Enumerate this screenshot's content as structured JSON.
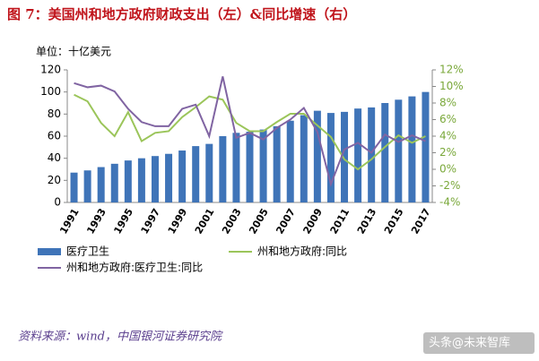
{
  "chart_data": {
    "type": "bar-line",
    "title": "图 7：美国州和地方政府财政支出（左）&同比增速（右）",
    "unit_label": "单位：十亿美元",
    "categories": [
      "1991",
      null,
      "1993",
      null,
      "1995",
      null,
      "1997",
      null,
      "1999",
      null,
      "2001",
      null,
      "2003",
      null,
      "2005",
      null,
      "2007",
      null,
      "2009",
      null,
      "2011",
      null,
      "2013",
      null,
      "2015",
      null,
      "2017"
    ],
    "series": [
      {
        "name": "医疗卫生",
        "type": "bar",
        "color": "#3f74b8",
        "values": [
          27,
          29,
          32,
          35,
          38,
          40,
          42,
          44,
          47,
          51,
          53,
          60,
          63,
          64,
          66,
          69,
          74,
          79,
          83,
          81,
          82,
          85,
          86,
          90,
          93,
          96,
          100
        ]
      },
      {
        "name": "州和地方政府:同比",
        "type": "line",
        "axis": "y2",
        "color": "#9bc55a",
        "values": [
          9.0,
          8.2,
          5.6,
          4.0,
          6.9,
          3.4,
          4.4,
          4.6,
          6.3,
          7.5,
          8.8,
          8.4,
          5.6,
          4.6,
          4.6,
          5.7,
          6.7,
          6.7,
          5.3,
          3.9,
          1.2,
          0.0,
          1.2,
          2.7,
          4.1,
          3.2,
          4.0
        ]
      },
      {
        "name": "州和地方政府:医疗卫生:同比",
        "type": "line",
        "axis": "y2",
        "color": "#8064a2",
        "values": [
          10.4,
          9.9,
          10.1,
          9.4,
          7.3,
          5.7,
          5.2,
          5.2,
          7.3,
          7.8,
          4.0,
          11.2,
          3.8,
          4.4,
          3.6,
          5.0,
          6.0,
          7.4,
          4.5,
          -1.8,
          2.4,
          3.2,
          2.0,
          4.2,
          3.3,
          4.1,
          3.4
        ]
      }
    ],
    "ylim": [
      0,
      120
    ],
    "yticks": [
      0,
      20,
      40,
      60,
      80,
      100,
      120
    ],
    "y2lim": [
      -4,
      12
    ],
    "y2ticks": [
      {
        "value": -4,
        "label": "-4%"
      },
      {
        "value": -2,
        "label": "-2%"
      },
      {
        "value": 0,
        "label": "0%"
      },
      {
        "value": 2,
        "label": "2%"
      },
      {
        "value": 4,
        "label": "4%"
      },
      {
        "value": 6,
        "label": "6%"
      },
      {
        "value": 8,
        "label": "8%"
      },
      {
        "value": 10,
        "label": "10%"
      },
      {
        "value": 12,
        "label": "12%"
      }
    ],
    "source": "资料来源：wind，中国银河证券研究院",
    "watermark": "头条@未来智库"
  }
}
